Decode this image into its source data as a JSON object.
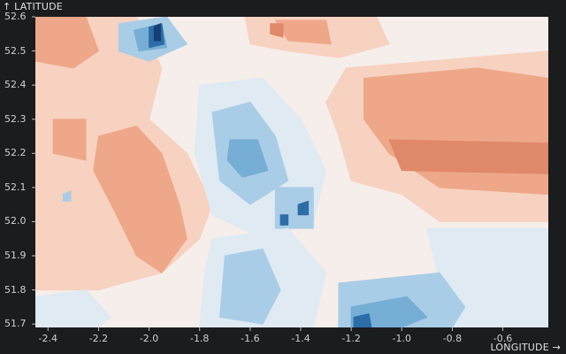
{
  "axes": {
    "y_title": "↑ LATITUDE",
    "x_title": "LONGITUDE →"
  },
  "chart_data": {
    "type": "heatmap",
    "xlabel": "LONGITUDE →",
    "ylabel": "↑ LATITUDE",
    "xlim": [
      -2.45,
      -0.42
    ],
    "ylim": [
      51.69,
      52.6
    ],
    "x_ticks": [
      "-2.4",
      "-2.2",
      "-2.0",
      "-1.8",
      "-1.6",
      "-1.4",
      "-1.2",
      "-1.0",
      "-0.8",
      "-0.6"
    ],
    "y_ticks": [
      "52.6",
      "52.5",
      "52.4",
      "52.3",
      "52.2",
      "52.1",
      "52.0",
      "51.9",
      "51.8",
      "51.7"
    ],
    "x_tick_values": [
      -2.4,
      -2.2,
      -2.0,
      -1.8,
      -1.6,
      -1.4,
      -1.2,
      -1.0,
      -0.8,
      -0.6
    ],
    "y_tick_values": [
      52.6,
      52.5,
      52.4,
      52.3,
      52.2,
      52.1,
      52.0,
      51.9,
      51.8,
      51.7
    ],
    "colormap": "diverging-red-blue",
    "colors": {
      "strong_red": "#e0896a",
      "red": "#eea889",
      "light_red": "#f7d2c0",
      "neutral": "#f6eeea",
      "light_blue": "#dfeaf3",
      "blue": "#a9cde6",
      "mid_blue": "#76aed5",
      "dark_blue": "#2d6da7",
      "darkest_blue": "#163e72"
    },
    "regions": [
      {
        "name": "neutral-base",
        "level": "neutral",
        "points": [
          [
            -2.45,
            52.6
          ],
          [
            -0.42,
            52.6
          ],
          [
            -0.42,
            51.69
          ],
          [
            -2.45,
            51.69
          ]
        ]
      },
      {
        "name": "west-warm-large",
        "level": "light_red",
        "points": [
          [
            -2.45,
            52.6
          ],
          [
            -2.05,
            52.6
          ],
          [
            -1.95,
            52.45
          ],
          [
            -2.0,
            52.3
          ],
          [
            -1.85,
            52.2
          ],
          [
            -1.75,
            52.05
          ],
          [
            -1.8,
            51.95
          ],
          [
            -1.95,
            51.85
          ],
          [
            -2.2,
            51.8
          ],
          [
            -2.45,
            51.8
          ]
        ]
      },
      {
        "name": "west-warm-core",
        "level": "red",
        "points": [
          [
            -2.2,
            52.25
          ],
          [
            -2.05,
            52.28
          ],
          [
            -1.95,
            52.2
          ],
          [
            -1.88,
            52.05
          ],
          [
            -1.85,
            51.95
          ],
          [
            -1.95,
            51.85
          ],
          [
            -2.05,
            51.9
          ],
          [
            -2.15,
            52.05
          ],
          [
            -2.22,
            52.15
          ]
        ]
      },
      {
        "name": "west-warm-strip",
        "level": "red",
        "points": [
          [
            -2.38,
            52.3
          ],
          [
            -2.25,
            52.3
          ],
          [
            -2.25,
            52.18
          ],
          [
            -2.38,
            52.2
          ]
        ]
      },
      {
        "name": "northwest-warm",
        "level": "red",
        "points": [
          [
            -2.45,
            52.6
          ],
          [
            -2.25,
            52.6
          ],
          [
            -2.2,
            52.5
          ],
          [
            -2.3,
            52.45
          ],
          [
            -2.45,
            52.47
          ]
        ]
      },
      {
        "name": "north-central-warm",
        "level": "light_red",
        "points": [
          [
            -1.62,
            52.6
          ],
          [
            -1.1,
            52.6
          ],
          [
            -1.05,
            52.52
          ],
          [
            -1.25,
            52.48
          ],
          [
            -1.45,
            52.5
          ],
          [
            -1.6,
            52.52
          ]
        ]
      },
      {
        "name": "north-central-core",
        "level": "red",
        "points": [
          [
            -1.5,
            52.59
          ],
          [
            -1.3,
            52.59
          ],
          [
            -1.28,
            52.52
          ],
          -1.45,
          [
            52.53
          ]
        ]
      },
      {
        "name": "north-hot-spot",
        "level": "strong_red",
        "points": [
          [
            -1.52,
            52.58
          ],
          [
            -1.47,
            52.58
          ],
          [
            -1.47,
            52.54
          ],
          [
            -1.52,
            52.55
          ]
        ]
      },
      {
        "name": "east-warm-large",
        "level": "light_red",
        "points": [
          [
            -1.22,
            52.45
          ],
          [
            -0.42,
            52.5
          ],
          [
            -0.42,
            52.0
          ],
          [
            -0.85,
            52.0
          ],
          [
            -1.0,
            52.08
          ],
          [
            -1.2,
            52.12
          ],
          [
            -1.25,
            52.25
          ],
          -1.3,
          [
            52.35
          ]
        ]
      },
      {
        "name": "east-warm-core",
        "level": "red",
        "points": [
          [
            -1.15,
            52.42
          ],
          [
            -0.7,
            52.45
          ],
          [
            -0.42,
            52.42
          ],
          [
            -0.42,
            52.08
          ],
          [
            -0.85,
            52.1
          ],
          [
            -1.05,
            52.2
          ],
          [
            -1.15,
            52.3
          ]
        ]
      },
      {
        "name": "east-hot-band",
        "level": "strong_red",
        "points": [
          [
            -1.05,
            52.24
          ],
          [
            -0.42,
            52.23
          ],
          [
            -0.42,
            52.14
          ],
          [
            -1.0,
            52.15
          ]
        ]
      },
      {
        "name": "southeast-neutral-blue",
        "level": "light_blue",
        "points": [
          [
            -0.9,
            51.98
          ],
          [
            -0.42,
            51.98
          ],
          [
            -0.42,
            51.69
          ],
          [
            -0.8,
            51.69
          ],
          [
            -0.85,
            51.82
          ]
        ]
      },
      {
        "name": "central-cool-large",
        "level": "light_blue",
        "points": [
          [
            -1.8,
            52.4
          ],
          [
            -1.55,
            52.42
          ],
          [
            -1.4,
            52.3
          ],
          [
            -1.3,
            52.15
          ],
          [
            -1.35,
            52.0
          ],
          [
            -1.55,
            51.95
          ],
          [
            -1.75,
            52.02
          ],
          -1.82,
          [
            52.2
          ]
        ]
      },
      {
        "name": "central-cool-mid",
        "level": "blue",
        "points": [
          [
            -1.75,
            52.32
          ],
          [
            -1.6,
            52.35
          ],
          [
            -1.5,
            52.25
          ],
          [
            -1.45,
            52.12
          ],
          [
            -1.6,
            52.05
          ],
          [
            -1.72,
            52.12
          ]
        ]
      },
      {
        "name": "central-cool-core",
        "level": "mid_blue",
        "points": [
          [
            -1.68,
            52.24
          ],
          [
            -1.57,
            52.24
          ],
          [
            -1.53,
            52.15
          ],
          [
            -1.63,
            52.13
          ],
          [
            -1.69,
            52.18
          ]
        ]
      },
      {
        "name": "north-cool-patch",
        "level": "blue",
        "points": [
          [
            -2.12,
            52.58
          ],
          [
            -1.93,
            52.6
          ],
          [
            -1.85,
            52.52
          ],
          [
            -2.0,
            52.47
          ],
          [
            -2.12,
            52.5
          ]
        ]
      },
      {
        "name": "north-cool-core",
        "level": "mid_blue",
        "points": [
          [
            -2.06,
            52.56
          ],
          [
            -1.95,
            52.58
          ],
          [
            -1.93,
            52.51
          ],
          -2.04,
          [
            52.5
          ]
        ]
      },
      {
        "name": "north-dark-spot",
        "level": "dark_blue",
        "points": [
          [
            -2.0,
            52.57
          ],
          [
            -1.95,
            52.58
          ],
          [
            -1.94,
            52.52
          ],
          [
            -2.0,
            52.51
          ]
        ]
      },
      {
        "name": "north-darkest-spot",
        "level": "darkest_blue",
        "points": [
          [
            -1.98,
            52.57
          ],
          [
            -1.955,
            52.58
          ],
          [
            -1.955,
            52.53
          ],
          [
            -1.98,
            52.53
          ]
        ]
      },
      {
        "name": "midfield-cool",
        "level": "blue",
        "points": [
          [
            -1.5,
            52.1
          ],
          [
            -1.35,
            52.1
          ],
          [
            -1.35,
            51.98
          ],
          [
            -1.5,
            51.98
          ]
        ]
      },
      {
        "name": "midfield-dark-a",
        "level": "dark_blue",
        "points": [
          [
            -1.48,
            52.02
          ],
          [
            -1.45,
            52.02
          ],
          [
            -1.45,
            51.99
          ],
          [
            -1.48,
            51.99
          ]
        ]
      },
      {
        "name": "midfield-dark-b",
        "level": "dark_blue",
        "points": [
          [
            -1.41,
            52.05
          ],
          [
            -1.37,
            52.06
          ],
          [
            -1.37,
            52.02
          ],
          [
            -1.41,
            52.02
          ]
        ]
      },
      {
        "name": "south-central-cool",
        "level": "light_blue",
        "points": [
          [
            -1.75,
            51.95
          ],
          [
            -1.45,
            51.98
          ],
          [
            -1.3,
            51.85
          ],
          [
            -1.35,
            51.69
          ],
          [
            -1.8,
            51.69
          ],
          [
            -1.78,
            51.85
          ]
        ]
      },
      {
        "name": "south-central-mid",
        "level": "blue",
        "points": [
          [
            -1.7,
            51.9
          ],
          [
            -1.55,
            51.92
          ],
          [
            -1.48,
            51.8
          ],
          [
            -1.55,
            51.7
          ],
          [
            -1.72,
            51.72
          ]
        ]
      },
      {
        "name": "southeast-cool-ring",
        "level": "blue",
        "points": [
          [
            -1.25,
            51.82
          ],
          [
            -0.85,
            51.85
          ],
          [
            -0.75,
            51.75
          ],
          [
            -0.8,
            51.69
          ],
          [
            -1.25,
            51.69
          ]
        ]
      },
      {
        "name": "southeast-cool-core",
        "level": "mid_blue",
        "points": [
          [
            -1.2,
            51.75
          ],
          [
            -0.98,
            51.78
          ],
          [
            -0.9,
            51.72
          ],
          [
            -1.0,
            51.69
          ],
          [
            -1.2,
            51.69
          ]
        ]
      },
      {
        "name": "south-dark-spot",
        "level": "dark_blue",
        "points": [
          [
            -1.19,
            51.72
          ],
          [
            -1.13,
            51.73
          ],
          [
            -1.12,
            51.69
          ],
          [
            -1.19,
            51.69
          ]
        ]
      },
      {
        "name": "southwest-cool",
        "level": "light_blue",
        "points": [
          [
            -2.45,
            51.78
          ],
          [
            -2.25,
            51.8
          ],
          [
            -2.15,
            51.72
          ],
          [
            -2.2,
            51.69
          ],
          [
            -2.45,
            51.69
          ]
        ]
      },
      {
        "name": "west-edge-cool",
        "level": "blue",
        "points": [
          [
            -2.34,
            52.08
          ],
          [
            -2.31,
            52.09
          ],
          [
            -2.31,
            52.06
          ],
          [
            -2.34,
            52.06
          ]
        ]
      }
    ]
  }
}
